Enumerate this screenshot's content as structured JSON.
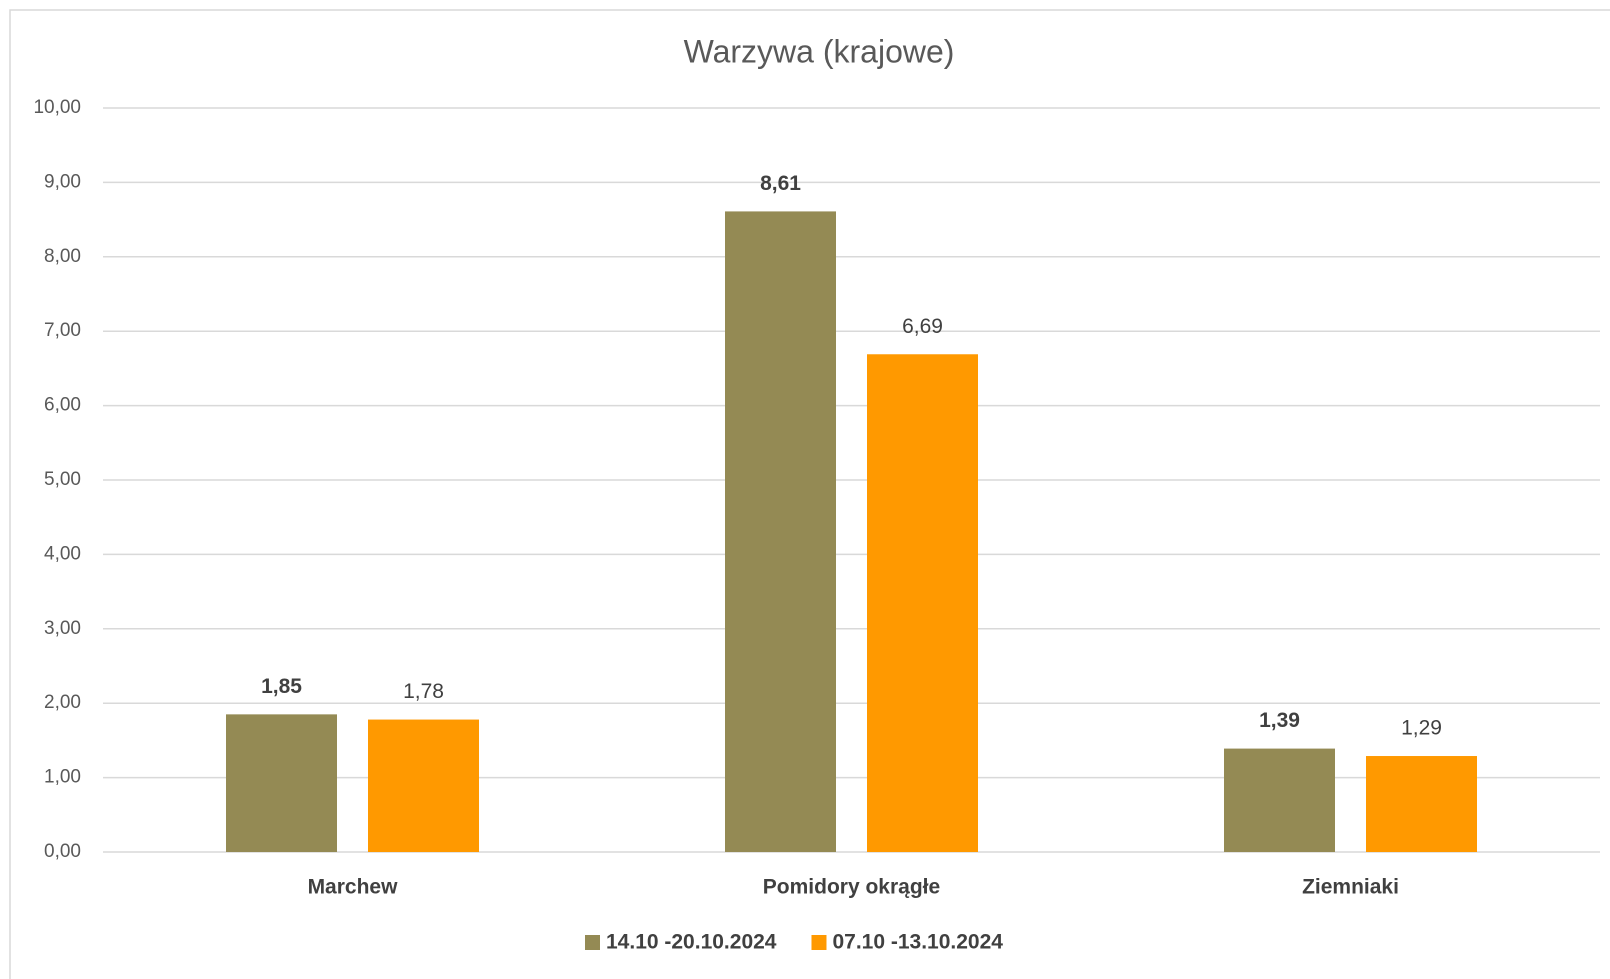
{
  "chart_data": {
    "type": "bar",
    "title": "Warzywa (krajowe)",
    "categories": [
      "Marchew",
      "Pomidory okrągłe",
      "Ziemniaki"
    ],
    "series": [
      {
        "name": "14.10 -20.10.2024",
        "color": "#948a54",
        "values": [
          1.85,
          8.61,
          1.39
        ],
        "value_labels": [
          "1,85",
          "8,61",
          "1,39"
        ]
      },
      {
        "name": "07.10 -13.10.2024",
        "color": "#ff9900",
        "values": [
          1.78,
          6.69,
          1.29
        ],
        "value_labels": [
          "1,78",
          "6,69",
          "1,29"
        ]
      }
    ],
    "ylim": [
      0,
      10
    ],
    "yticks": [
      {
        "value": 0,
        "label": "0,00"
      },
      {
        "value": 1,
        "label": "1,00"
      },
      {
        "value": 2,
        "label": "2,00"
      },
      {
        "value": 3,
        "label": "3,00"
      },
      {
        "value": 4,
        "label": "4,00"
      },
      {
        "value": 5,
        "label": "5,00"
      },
      {
        "value": 6,
        "label": "6,00"
      },
      {
        "value": 7,
        "label": "7,00"
      },
      {
        "value": 8,
        "label": "8,00"
      },
      {
        "value": 9,
        "label": "9,00"
      },
      {
        "value": 10,
        "label": "10,00"
      }
    ],
    "grid": true,
    "legend": "bottom"
  }
}
